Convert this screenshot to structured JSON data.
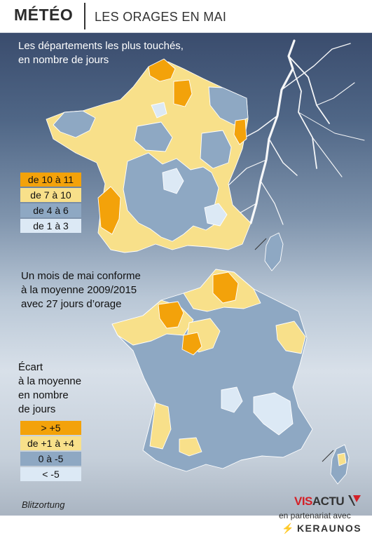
{
  "header": {
    "brand": "MÉTÉO",
    "subject": "LES ORAGES EN MAI"
  },
  "map1": {
    "title": "Les départements les plus touchés, en nombre de jours",
    "title_lines": [
      "Les départements les plus touchés,",
      "en nombre de jours"
    ],
    "legend": [
      {
        "label": "de 10 à 11",
        "color": "#f3a20a"
      },
      {
        "label": "de 7 à 10",
        "color": "#f8e08a"
      },
      {
        "label": "de 4 à 6",
        "color": "#8ea8c3"
      },
      {
        "label": "de 1 à 3",
        "color": "#dce9f5"
      }
    ]
  },
  "map2": {
    "intro_lines": [
      "Un mois de mai conforme",
      "à la moyenne 2009/2015",
      "avec 27 jours d’orage"
    ],
    "legend_title_lines": [
      "Écart",
      "à la moyenne",
      "en nombre",
      "de jours"
    ],
    "legend": [
      {
        "label": "> +5",
        "color": "#f3a20a"
      },
      {
        "label": "de +1 à +4",
        "color": "#f8e08a"
      },
      {
        "label": "0 à -5",
        "color": "#8ea8c3"
      },
      {
        "label": "< -5",
        "color": "#dce9f5"
      }
    ]
  },
  "source": "Blitzortung",
  "credits": {
    "brand_red": "VIS",
    "brand_dark": "ACTU",
    "partner_text": "en partenariat avec",
    "partner_name": "KERAUNOS"
  },
  "icons": {
    "lightning": "lightning-bolt-icon"
  }
}
